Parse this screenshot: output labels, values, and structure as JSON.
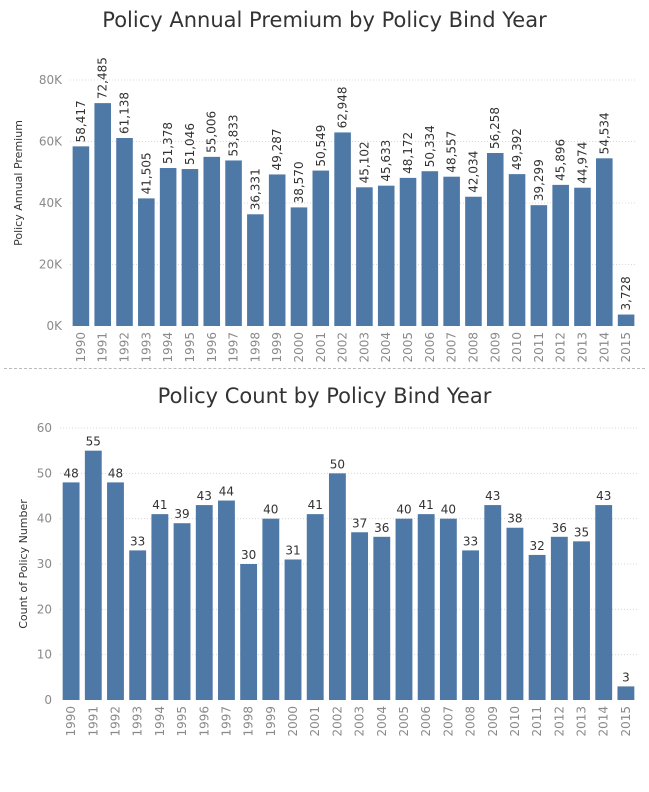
{
  "chart_data": [
    {
      "type": "bar",
      "title": "Policy Annual Premium by Policy Bind Year",
      "xlabel": "",
      "ylabel": "Policy Annual Premium",
      "ylim": [
        0,
        80000
      ],
      "yticks": [
        "0K",
        "20K",
        "40K",
        "60K",
        "80K"
      ],
      "ytick_values": [
        0,
        20000,
        40000,
        60000,
        80000
      ],
      "categories": [
        "1990",
        "1991",
        "1992",
        "1993",
        "1994",
        "1995",
        "1996",
        "1997",
        "1998",
        "1999",
        "2000",
        "2001",
        "2002",
        "2003",
        "2004",
        "2005",
        "2006",
        "2007",
        "2008",
        "2009",
        "2010",
        "2011",
        "2012",
        "2013",
        "2014",
        "2015"
      ],
      "values": [
        58417,
        72485,
        61138,
        41505,
        51378,
        51046,
        55006,
        53833,
        36331,
        49287,
        38570,
        50549,
        62948,
        45102,
        45633,
        48172,
        50334,
        48557,
        42034,
        56258,
        49392,
        39299,
        45896,
        44974,
        54534,
        3728
      ],
      "labels": [
        "58,417",
        "72,485",
        "61,138",
        "41,505",
        "51,378",
        "51,046",
        "55,006",
        "53,833",
        "36,331",
        "49,287",
        "38,570",
        "50,549",
        "62,948",
        "45,102",
        "45,633",
        "48,172",
        "50,334",
        "48,557",
        "42,034",
        "56,258",
        "49,392",
        "39,299",
        "45,896",
        "44,974",
        "54,534",
        "3,728"
      ],
      "grid": true
    },
    {
      "type": "bar",
      "title": "Policy Count by Policy Bind Year",
      "xlabel": "",
      "ylabel": "Count of Policy Number",
      "ylim": [
        0,
        60
      ],
      "yticks": [
        "0",
        "10",
        "20",
        "30",
        "40",
        "50",
        "60"
      ],
      "ytick_values": [
        0,
        10,
        20,
        30,
        40,
        50,
        60
      ],
      "categories": [
        "1990",
        "1991",
        "1992",
        "1993",
        "1994",
        "1995",
        "1996",
        "1997",
        "1998",
        "1999",
        "2000",
        "2001",
        "2002",
        "2003",
        "2004",
        "2005",
        "2006",
        "2007",
        "2008",
        "2009",
        "2010",
        "2011",
        "2012",
        "2013",
        "2014",
        "2015"
      ],
      "values": [
        48,
        55,
        48,
        33,
        41,
        39,
        43,
        44,
        30,
        40,
        31,
        41,
        50,
        37,
        36,
        40,
        41,
        40,
        33,
        43,
        38,
        32,
        36,
        35,
        43,
        3
      ],
      "labels": [
        "48",
        "55",
        "48",
        "33",
        "41",
        "39",
        "43",
        "44",
        "30",
        "40",
        "31",
        "41",
        "50",
        "37",
        "36",
        "40",
        "41",
        "40",
        "33",
        "43",
        "38",
        "32",
        "36",
        "35",
        "43",
        "3"
      ],
      "grid": true
    }
  ],
  "colors": {
    "bar": "#4e79a7",
    "label": "#333333",
    "axis_text": "#8a8a8a",
    "grid": "#d8d8d8"
  }
}
